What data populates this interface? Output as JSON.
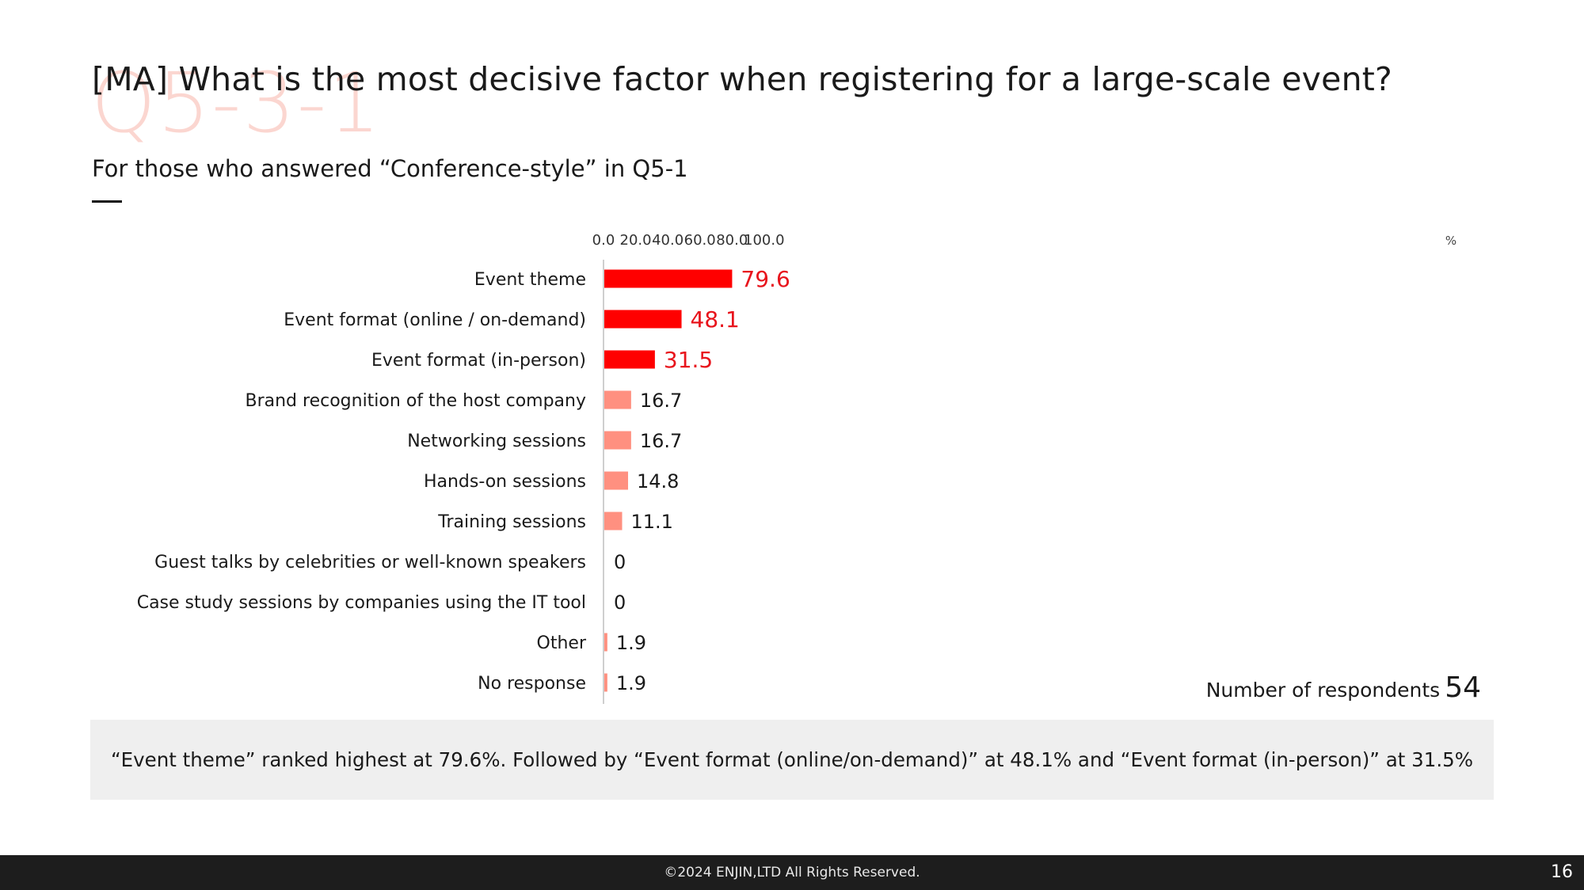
{
  "slide": {
    "watermark": "Q5-3-1",
    "title": "[MA] What is the most decisive factor when registering for a large-scale event?",
    "subtitle": "For those who answered “Conference-style” in Q5-1",
    "respondents_label": "Number of respondents",
    "respondents_count": "54",
    "summary": "“Event theme” ranked highest at 79.6%. Followed by “Event format (online/on-demand)” at 48.1% and “Event format (in-person)” at 31.5%",
    "footer_copyright": "©2024 ENJIN,LTD  All Rights Reserved.",
    "page_number": "16"
  },
  "chart_data": {
    "type": "bar",
    "orientation": "horizontal",
    "categories": [
      "Event theme",
      "Event format (online / on-demand)",
      "Event format (in-person)",
      "Brand recognition of the host company",
      "Networking sessions",
      "Hands-on sessions",
      "Training sessions",
      "Guest talks by celebrities or well-known speakers",
      "Case study sessions by companies using the IT tool",
      "Other",
      "No response"
    ],
    "values": [
      79.6,
      48.1,
      31.5,
      16.7,
      16.7,
      14.8,
      11.1,
      0,
      0,
      1.9,
      1.9
    ],
    "value_labels": [
      "79.6",
      "48.1",
      "31.5",
      "16.7",
      "16.7",
      "14.8",
      "11.1",
      "0",
      "0",
      "1.9",
      "1.9"
    ],
    "highlighted_top": 3,
    "x_ticks": [
      "0.0",
      "20.0",
      "40.0",
      "60.0",
      "80.0",
      "100.0"
    ],
    "x_unit": "%",
    "xlim": [
      0,
      100
    ],
    "grid": false,
    "colors": {
      "highlight": "#ff0000",
      "normal": "#ff9080",
      "highlight_label": "#e8141c",
      "normal_label": "#1a1a1a",
      "axis": "#cfcfcf"
    }
  }
}
